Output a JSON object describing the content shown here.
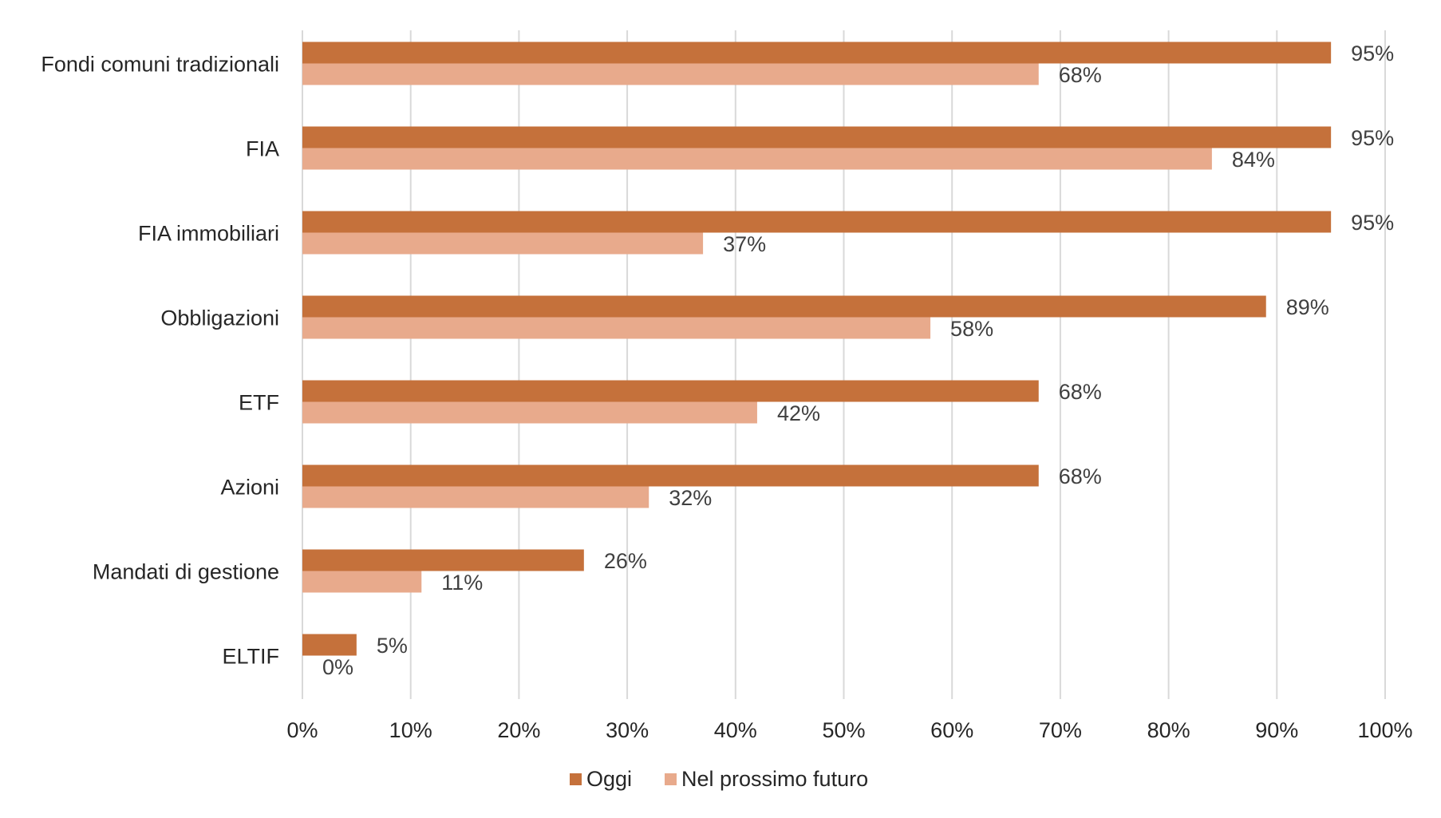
{
  "chart_data": {
    "type": "bar",
    "orientation": "horizontal",
    "title": "",
    "xlabel": "",
    "ylabel": "",
    "categories": [
      "Fondi comuni tradizionali",
      "FIA",
      "FIA immobiliari",
      "Obbligazioni",
      "ETF",
      "Azioni",
      "Mandati di gestione",
      "ELTIF"
    ],
    "series": [
      {
        "name": "Oggi",
        "color": "#C5713B",
        "values": [
          95,
          95,
          95,
          89,
          68,
          68,
          26,
          5
        ]
      },
      {
        "name": "Nel prossimo futuro",
        "color": "#E8AA8C",
        "values": [
          68,
          84,
          37,
          58,
          42,
          32,
          11,
          0
        ]
      }
    ],
    "xlim": [
      0,
      100
    ],
    "x_ticks": [
      0,
      10,
      20,
      30,
      40,
      50,
      60,
      70,
      80,
      90,
      100
    ],
    "value_format": "percent",
    "gridlines": "vertical",
    "gridline_color": "#D9D9D9",
    "legend_position": "bottom",
    "data_labels": true
  }
}
